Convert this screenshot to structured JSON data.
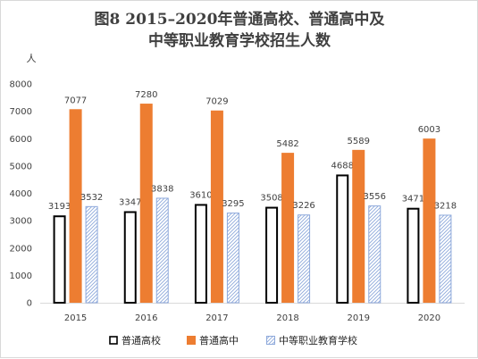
{
  "chart_data": {
    "type": "bar",
    "title": "图8  2015–2020年普通高校、普通高中及",
    "subtitle": "中等职业教育学校招生人数",
    "ylabel": "人",
    "ylim": [
      0,
      8000
    ],
    "yticks": [
      0,
      1000,
      2000,
      3000,
      4000,
      5000,
      6000,
      7000,
      8000
    ],
    "categories": [
      "2015",
      "2016",
      "2017",
      "2018",
      "2019",
      "2020"
    ],
    "series": [
      {
        "name": "普通高校",
        "values": [
          3193,
          3347,
          3610,
          3508,
          4688,
          3471
        ],
        "color": "#000000",
        "style": "outline"
      },
      {
        "name": "普通高中",
        "values": [
          7077,
          7280,
          7029,
          5482,
          5589,
          6003
        ],
        "color": "#ED7D31",
        "style": "solid"
      },
      {
        "name": "中等职业教育学校",
        "values": [
          3532,
          3838,
          3295,
          3226,
          3556,
          3218
        ],
        "color": "#8EA9DB",
        "style": "hatch"
      }
    ],
    "grid": false,
    "legend": "bottom"
  }
}
